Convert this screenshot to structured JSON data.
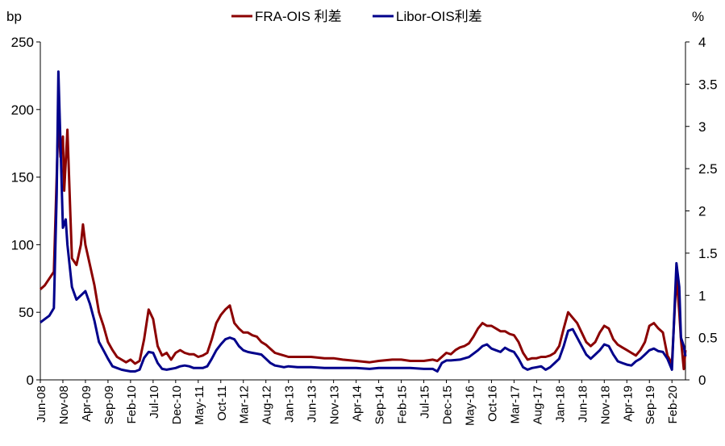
{
  "chart_data": {
    "type": "line",
    "y_left_unit": "bp",
    "y_right_unit": "%",
    "y_left_ticks": [
      0,
      50,
      100,
      150,
      200,
      250
    ],
    "y_right_ticks": [
      "0",
      "0.5",
      "1",
      "1.5",
      "2",
      "2.5",
      "3",
      "3.5",
      "4"
    ],
    "ylim_left": [
      0,
      250
    ],
    "ylim_right": [
      0,
      4
    ],
    "x_tick_labels": [
      "Jun-08",
      "Nov-08",
      "Apr-09",
      "Sep-09",
      "Feb-10",
      "Jul-10",
      "Dec-10",
      "May-11",
      "Oct-11",
      "Mar-12",
      "Aug-12",
      "Jan-13",
      "Jun-13",
      "Nov-13",
      "Apr-14",
      "Sep-14",
      "Feb-15",
      "Jul-15",
      "Dec-15",
      "May-16",
      "Oct-16",
      "Mar-17",
      "Aug-17",
      "Jan-18",
      "Jun-18",
      "Nov-18",
      "Apr-19",
      "Sep-19",
      "Feb-20"
    ],
    "x_start": "2008-06",
    "x_end": "2020-05",
    "legend_position": "top-center",
    "grid": false,
    "series": [
      {
        "name": "FRA-OIS 利差",
        "axis": "left",
        "color": "#8B0000",
        "points": [
          [
            "2008-06",
            67
          ],
          [
            "2008-07",
            70
          ],
          [
            "2008-08",
            75
          ],
          [
            "2008-09",
            80
          ],
          [
            "2008-09-20",
            150
          ],
          [
            "2008-10",
            195
          ],
          [
            "2008-10-15",
            165
          ],
          [
            "2008-11",
            180
          ],
          [
            "2008-11-10",
            140
          ],
          [
            "2008-12",
            185
          ],
          [
            "2008-12-20",
            125
          ],
          [
            "2009-01",
            90
          ],
          [
            "2009-02",
            85
          ],
          [
            "2009-03",
            100
          ],
          [
            "2009-03-15",
            115
          ],
          [
            "2009-04",
            100
          ],
          [
            "2009-05",
            85
          ],
          [
            "2009-06",
            70
          ],
          [
            "2009-07",
            50
          ],
          [
            "2009-08",
            40
          ],
          [
            "2009-09",
            28
          ],
          [
            "2009-10",
            22
          ],
          [
            "2009-11",
            17
          ],
          [
            "2009-12",
            15
          ],
          [
            "2010-01",
            13
          ],
          [
            "2010-02",
            15
          ],
          [
            "2010-03",
            12
          ],
          [
            "2010-04",
            14
          ],
          [
            "2010-05",
            30
          ],
          [
            "2010-06",
            52
          ],
          [
            "2010-07",
            45
          ],
          [
            "2010-08",
            25
          ],
          [
            "2010-09",
            18
          ],
          [
            "2010-10",
            20
          ],
          [
            "2010-11",
            15
          ],
          [
            "2010-12",
            20
          ],
          [
            "2011-01",
            22
          ],
          [
            "2011-02",
            20
          ],
          [
            "2011-03",
            19
          ],
          [
            "2011-04",
            19
          ],
          [
            "2011-05",
            17
          ],
          [
            "2011-06",
            18
          ],
          [
            "2011-07",
            20
          ],
          [
            "2011-08",
            30
          ],
          [
            "2011-09",
            42
          ],
          [
            "2011-10",
            48
          ],
          [
            "2011-11",
            52
          ],
          [
            "2011-12",
            55
          ],
          [
            "2012-01",
            42
          ],
          [
            "2012-02",
            38
          ],
          [
            "2012-03",
            35
          ],
          [
            "2012-04",
            35
          ],
          [
            "2012-05",
            33
          ],
          [
            "2012-06",
            32
          ],
          [
            "2012-07",
            28
          ],
          [
            "2012-08",
            26
          ],
          [
            "2012-09",
            23
          ],
          [
            "2012-10",
            20
          ],
          [
            "2012-11",
            19
          ],
          [
            "2012-12",
            18
          ],
          [
            "2013-01",
            17
          ],
          [
            "2013-03",
            17
          ],
          [
            "2013-06",
            17
          ],
          [
            "2013-09",
            16
          ],
          [
            "2013-11",
            16
          ],
          [
            "2014-01",
            15
          ],
          [
            "2014-04",
            14
          ],
          [
            "2014-07",
            13
          ],
          [
            "2014-09",
            14
          ],
          [
            "2014-12",
            15
          ],
          [
            "2015-02",
            15
          ],
          [
            "2015-04",
            14
          ],
          [
            "2015-07",
            14
          ],
          [
            "2015-09",
            15
          ],
          [
            "2015-10",
            14
          ],
          [
            "2015-11",
            17
          ],
          [
            "2015-12",
            20
          ],
          [
            "2016-01",
            19
          ],
          [
            "2016-02",
            22
          ],
          [
            "2016-03",
            24
          ],
          [
            "2016-04",
            25
          ],
          [
            "2016-05",
            27
          ],
          [
            "2016-06",
            32
          ],
          [
            "2016-07",
            38
          ],
          [
            "2016-08",
            42
          ],
          [
            "2016-09",
            40
          ],
          [
            "2016-10",
            40
          ],
          [
            "2016-11",
            38
          ],
          [
            "2016-12",
            36
          ],
          [
            "2017-01",
            36
          ],
          [
            "2017-02",
            34
          ],
          [
            "2017-03",
            33
          ],
          [
            "2017-04",
            28
          ],
          [
            "2017-05",
            20
          ],
          [
            "2017-06",
            15
          ],
          [
            "2017-07",
            16
          ],
          [
            "2017-08",
            16
          ],
          [
            "2017-09",
            17
          ],
          [
            "2017-10",
            17
          ],
          [
            "2017-11",
            18
          ],
          [
            "2017-12",
            20
          ],
          [
            "2018-01",
            25
          ],
          [
            "2018-02",
            38
          ],
          [
            "2018-03",
            50
          ],
          [
            "2018-04",
            46
          ],
          [
            "2018-05",
            42
          ],
          [
            "2018-06",
            35
          ],
          [
            "2018-07",
            28
          ],
          [
            "2018-08",
            25
          ],
          [
            "2018-09",
            28
          ],
          [
            "2018-10",
            35
          ],
          [
            "2018-11",
            40
          ],
          [
            "2018-12",
            38
          ],
          [
            "2019-01",
            30
          ],
          [
            "2019-02",
            26
          ],
          [
            "2019-03",
            24
          ],
          [
            "2019-04",
            22
          ],
          [
            "2019-05",
            20
          ],
          [
            "2019-06",
            18
          ],
          [
            "2019-07",
            22
          ],
          [
            "2019-08",
            28
          ],
          [
            "2019-09",
            40
          ],
          [
            "2019-10",
            42
          ],
          [
            "2019-11",
            38
          ],
          [
            "2019-12",
            35
          ],
          [
            "2020-01",
            18
          ],
          [
            "2020-02",
            12
          ],
          [
            "2020-03",
            77
          ],
          [
            "2020-03-20",
            50
          ],
          [
            "2020-04",
            30
          ],
          [
            "2020-04-20",
            8
          ],
          [
            "2020-05",
            22
          ]
        ]
      },
      {
        "name": "Libor-OIS利差",
        "axis": "right",
        "color": "#00008B",
        "points": [
          [
            "2008-06",
            0.68
          ],
          [
            "2008-07",
            0.72
          ],
          [
            "2008-08",
            0.76
          ],
          [
            "2008-09",
            0.85
          ],
          [
            "2008-09-20",
            2.2
          ],
          [
            "2008-10",
            3.65
          ],
          [
            "2008-10-15",
            2.8
          ],
          [
            "2008-11",
            1.8
          ],
          [
            "2008-11-20",
            1.9
          ],
          [
            "2008-12",
            1.6
          ],
          [
            "2009-01",
            1.1
          ],
          [
            "2009-02",
            0.95
          ],
          [
            "2009-03",
            1.0
          ],
          [
            "2009-04",
            1.05
          ],
          [
            "2009-05",
            0.9
          ],
          [
            "2009-06",
            0.7
          ],
          [
            "2009-07",
            0.45
          ],
          [
            "2009-08",
            0.35
          ],
          [
            "2009-09",
            0.25
          ],
          [
            "2009-10",
            0.16
          ],
          [
            "2009-11",
            0.14
          ],
          [
            "2009-12",
            0.12
          ],
          [
            "2010-01",
            0.11
          ],
          [
            "2010-02",
            0.1
          ],
          [
            "2010-03",
            0.1
          ],
          [
            "2010-04",
            0.12
          ],
          [
            "2010-05",
            0.26
          ],
          [
            "2010-06",
            0.33
          ],
          [
            "2010-07",
            0.32
          ],
          [
            "2010-08",
            0.2
          ],
          [
            "2010-09",
            0.13
          ],
          [
            "2010-10",
            0.12
          ],
          [
            "2010-11",
            0.13
          ],
          [
            "2010-12",
            0.14
          ],
          [
            "2011-01",
            0.16
          ],
          [
            "2011-02",
            0.17
          ],
          [
            "2011-03",
            0.16
          ],
          [
            "2011-04",
            0.14
          ],
          [
            "2011-05",
            0.14
          ],
          [
            "2011-06",
            0.14
          ],
          [
            "2011-07",
            0.16
          ],
          [
            "2011-08",
            0.25
          ],
          [
            "2011-09",
            0.35
          ],
          [
            "2011-10",
            0.42
          ],
          [
            "2011-11",
            0.48
          ],
          [
            "2011-12",
            0.5
          ],
          [
            "2012-01",
            0.48
          ],
          [
            "2012-02",
            0.4
          ],
          [
            "2012-03",
            0.35
          ],
          [
            "2012-04",
            0.33
          ],
          [
            "2012-05",
            0.32
          ],
          [
            "2012-06",
            0.31
          ],
          [
            "2012-07",
            0.3
          ],
          [
            "2012-08",
            0.25
          ],
          [
            "2012-09",
            0.2
          ],
          [
            "2012-10",
            0.17
          ],
          [
            "2012-11",
            0.16
          ],
          [
            "2012-12",
            0.15
          ],
          [
            "2013-01",
            0.16
          ],
          [
            "2013-03",
            0.15
          ],
          [
            "2013-06",
            0.15
          ],
          [
            "2013-09",
            0.14
          ],
          [
            "2013-11",
            0.14
          ],
          [
            "2014-01",
            0.14
          ],
          [
            "2014-04",
            0.14
          ],
          [
            "2014-07",
            0.13
          ],
          [
            "2014-09",
            0.14
          ],
          [
            "2014-12",
            0.14
          ],
          [
            "2015-02",
            0.14
          ],
          [
            "2015-04",
            0.14
          ],
          [
            "2015-07",
            0.13
          ],
          [
            "2015-09",
            0.13
          ],
          [
            "2015-10",
            0.1
          ],
          [
            "2015-11",
            0.2
          ],
          [
            "2015-12",
            0.23
          ],
          [
            "2016-01",
            0.23
          ],
          [
            "2016-03",
            0.24
          ],
          [
            "2016-05",
            0.27
          ],
          [
            "2016-07",
            0.35
          ],
          [
            "2016-08",
            0.4
          ],
          [
            "2016-09",
            0.42
          ],
          [
            "2016-10",
            0.37
          ],
          [
            "2016-11",
            0.35
          ],
          [
            "2016-12",
            0.33
          ],
          [
            "2017-01",
            0.38
          ],
          [
            "2017-02",
            0.35
          ],
          [
            "2017-03",
            0.33
          ],
          [
            "2017-04",
            0.25
          ],
          [
            "2017-05",
            0.15
          ],
          [
            "2017-06",
            0.12
          ],
          [
            "2017-07",
            0.14
          ],
          [
            "2017-08",
            0.15
          ],
          [
            "2017-09",
            0.16
          ],
          [
            "2017-10",
            0.12
          ],
          [
            "2017-11",
            0.15
          ],
          [
            "2017-12",
            0.2
          ],
          [
            "2018-01",
            0.25
          ],
          [
            "2018-02",
            0.4
          ],
          [
            "2018-03",
            0.58
          ],
          [
            "2018-04",
            0.6
          ],
          [
            "2018-05",
            0.5
          ],
          [
            "2018-06",
            0.4
          ],
          [
            "2018-07",
            0.3
          ],
          [
            "2018-08",
            0.25
          ],
          [
            "2018-09",
            0.3
          ],
          [
            "2018-10",
            0.35
          ],
          [
            "2018-11",
            0.42
          ],
          [
            "2018-12",
            0.4
          ],
          [
            "2019-01",
            0.3
          ],
          [
            "2019-02",
            0.22
          ],
          [
            "2019-03",
            0.2
          ],
          [
            "2019-04",
            0.18
          ],
          [
            "2019-05",
            0.17
          ],
          [
            "2019-06",
            0.22
          ],
          [
            "2019-07",
            0.25
          ],
          [
            "2019-08",
            0.3
          ],
          [
            "2019-09",
            0.35
          ],
          [
            "2019-10",
            0.37
          ],
          [
            "2019-11",
            0.34
          ],
          [
            "2019-12",
            0.33
          ],
          [
            "2020-01",
            0.25
          ],
          [
            "2020-02",
            0.12
          ],
          [
            "2020-03",
            1.38
          ],
          [
            "2020-03-20",
            1.1
          ],
          [
            "2020-04",
            0.5
          ],
          [
            "2020-04-20",
            0.4
          ],
          [
            "2020-05",
            0.28
          ]
        ]
      }
    ]
  }
}
